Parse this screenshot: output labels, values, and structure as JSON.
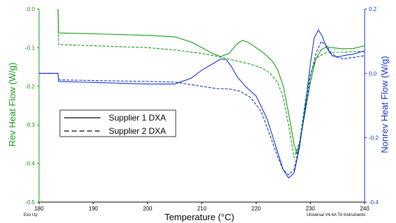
{
  "chart_data": {
    "type": "line",
    "x_axis": {
      "label": "Temperature (°C)",
      "range": [
        180,
        240
      ],
      "ticks": [
        180,
        190,
        200,
        210,
        220,
        230,
        240
      ],
      "tick_labels": [
        "180",
        "190",
        "200",
        "210",
        "220",
        "230",
        "240"
      ]
    },
    "y_left": {
      "label": "Rev Heat Flow (W/g)",
      "range": [
        -0.5,
        0.0
      ],
      "ticks": [
        0.0,
        -0.1,
        -0.2,
        -0.3,
        -0.4,
        -0.5
      ],
      "tick_labels": [
        "0.0",
        "-0.1",
        "-0.2",
        "-0.3",
        "-0.4",
        "-0.5"
      ],
      "color": "#119911"
    },
    "y_right": {
      "label": "Nonrev Heat Flow (W/g)",
      "range": [
        -0.4,
        0.2
      ],
      "ticks": [
        0.2,
        0.0,
        -0.2,
        -0.4
      ],
      "tick_labels": [
        "0.2",
        "0.0",
        "-0.2",
        "-0.4"
      ],
      "color": "#1133cc"
    },
    "legend": {
      "placement": "center-left",
      "entries": [
        {
          "label": "Supplier 1 DXA",
          "style": "solid"
        },
        {
          "label": "Supplier 2 DXA",
          "style": "dashed"
        }
      ]
    },
    "footer_left": "Exo Up",
    "footer_right": "Universal V4.4A TA Instruments",
    "series": [
      {
        "name": "Supplier 1 DXA",
        "signal": "Rev Heat Flow",
        "axis": "left",
        "style": "solid",
        "color": "#119911",
        "x": [
          183.5,
          183.6,
          190,
          200,
          205,
          208,
          210,
          212,
          213.5,
          215,
          216.5,
          217.5,
          218.5,
          220,
          221.5,
          223,
          224,
          225,
          226,
          227,
          227.5,
          228,
          229,
          230,
          231,
          232,
          233,
          234,
          236,
          238,
          240
        ],
        "y": [
          0.0,
          -0.062,
          -0.064,
          -0.068,
          -0.072,
          -0.085,
          -0.1,
          -0.115,
          -0.123,
          -0.115,
          -0.09,
          -0.081,
          -0.086,
          -0.1,
          -0.115,
          -0.135,
          -0.158,
          -0.2,
          -0.27,
          -0.35,
          -0.375,
          -0.35,
          -0.27,
          -0.19,
          -0.13,
          -0.105,
          -0.098,
          -0.1,
          -0.103,
          -0.102,
          -0.095
        ]
      },
      {
        "name": "Supplier 2 DXA",
        "signal": "Rev Heat Flow",
        "axis": "left",
        "style": "dashed",
        "color": "#119911",
        "x": [
          183.5,
          183.6,
          190,
          200,
          205,
          210,
          213,
          216,
          219,
          221,
          222.5,
          224,
          225,
          226,
          227,
          228,
          229,
          230,
          231,
          233,
          236,
          238,
          240
        ],
        "y": [
          0.0,
          -0.092,
          -0.095,
          -0.1,
          -0.106,
          -0.115,
          -0.123,
          -0.133,
          -0.143,
          -0.152,
          -0.165,
          -0.19,
          -0.23,
          -0.3,
          -0.385,
          -0.345,
          -0.245,
          -0.17,
          -0.128,
          -0.112,
          -0.112,
          -0.11,
          -0.11
        ]
      },
      {
        "name": "Supplier 1 DXA",
        "signal": "Nonrev Heat Flow",
        "axis": "right",
        "style": "solid",
        "color": "#1133cc",
        "x": [
          180,
          183.5,
          183.6,
          190,
          200,
          205,
          208,
          210,
          212,
          213.5,
          214.5,
          215.5,
          216.5,
          218,
          220,
          222,
          223.5,
          225,
          226,
          227,
          228,
          229,
          230,
          230.7,
          231.5,
          232.2,
          233,
          234,
          235,
          236,
          238,
          240
        ],
        "y": [
          0.0,
          0.0,
          -0.025,
          -0.028,
          -0.033,
          -0.033,
          -0.015,
          0.01,
          0.03,
          0.045,
          0.043,
          0.02,
          -0.01,
          -0.04,
          -0.07,
          -0.14,
          -0.22,
          -0.3,
          -0.325,
          -0.31,
          -0.23,
          -0.11,
          0.03,
          0.11,
          0.135,
          0.115,
          0.08,
          0.055,
          0.05,
          0.055,
          0.06,
          0.07
        ]
      },
      {
        "name": "Supplier 2 DXA",
        "signal": "Nonrev Heat Flow",
        "axis": "right",
        "style": "dashed",
        "color": "#1133cc",
        "x": [
          180,
          183.5,
          183.6,
          190,
          200,
          205,
          210,
          213,
          215,
          217,
          219,
          221,
          222.5,
          224,
          225,
          226,
          227,
          228,
          229,
          230,
          231,
          232,
          233,
          234,
          236,
          238,
          240
        ],
        "y": [
          0.0,
          0.0,
          -0.02,
          -0.022,
          -0.025,
          -0.027,
          -0.04,
          -0.048,
          -0.048,
          -0.055,
          -0.075,
          -0.12,
          -0.19,
          -0.26,
          -0.3,
          -0.315,
          -0.3,
          -0.22,
          -0.12,
          -0.01,
          0.06,
          0.1,
          0.085,
          0.06,
          0.045,
          0.05,
          0.055
        ]
      }
    ]
  }
}
